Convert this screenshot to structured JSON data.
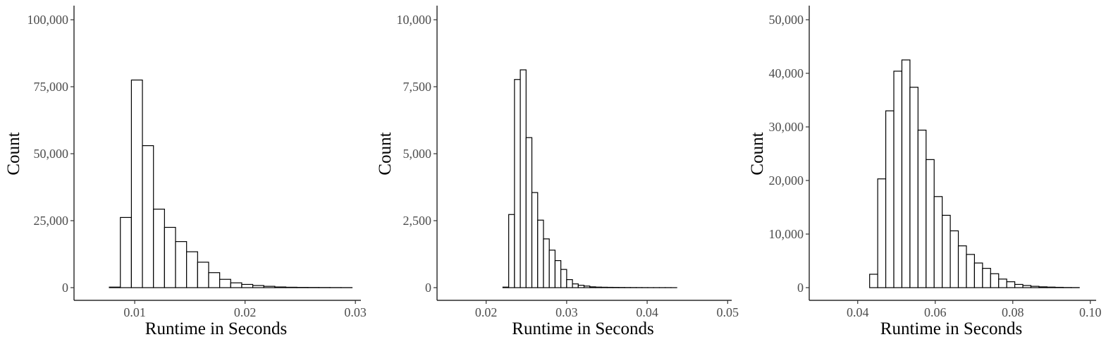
{
  "colors": {
    "bar_fill": "#ffffff",
    "bar_stroke": "#000000",
    "tick_text": "#4d4d4d"
  },
  "chart_data": [
    {
      "type": "bar",
      "title": "",
      "xlabel": "Runtime in Seconds",
      "ylabel": "Count",
      "xlim": [
        0.0045,
        0.0305
      ],
      "ylim": [
        0,
        100000
      ],
      "grid": false,
      "xticks": [
        0.01,
        0.02,
        0.03
      ],
      "xtick_labels": [
        "0.01",
        "0.02",
        "0.03"
      ],
      "yticks": [
        0,
        25000,
        50000,
        75000,
        100000
      ],
      "ytick_labels": [
        "0",
        "25,000",
        "50,000",
        "75,000",
        "100,000"
      ],
      "bin_width": 0.001,
      "bin_start": 0.0057,
      "values": [
        0,
        0,
        200,
        26200,
        77500,
        53000,
        29300,
        22500,
        17200,
        13400,
        9500,
        5600,
        3100,
        1800,
        1200,
        800,
        500,
        250,
        150,
        100,
        80,
        60,
        40,
        30
      ]
    },
    {
      "type": "bar",
      "title": "",
      "xlabel": "Runtime in Seconds",
      "ylabel": "Count",
      "xlim": [
        0.0139,
        0.0505
      ],
      "ylim": [
        0,
        10000
      ],
      "grid": false,
      "xticks": [
        0.02,
        0.03,
        0.04,
        0.05
      ],
      "xtick_labels": [
        "0.02",
        "0.03",
        "0.04",
        "0.05"
      ],
      "yticks": [
        0,
        2500,
        5000,
        7500,
        10000
      ],
      "ytick_labels": [
        "0",
        "2,500",
        "5,000",
        "7,500",
        "10,000"
      ],
      "bin_width": 0.00072,
      "bin_start": 0.0156,
      "values": [
        0,
        0,
        0,
        0,
        0,
        0,
        0,
        0,
        0,
        20,
        2730,
        7770,
        8130,
        5600,
        3550,
        2520,
        1820,
        1400,
        1010,
        680,
        300,
        140,
        90,
        60,
        30,
        20,
        15,
        12,
        10,
        8,
        6,
        5,
        4,
        3,
        2,
        2,
        2,
        2,
        1
      ]
    },
    {
      "type": "bar",
      "title": "",
      "xlabel": "Runtime in Seconds",
      "ylabel": "Count",
      "xlim": [
        0.0275,
        0.1015
      ],
      "ylim": [
        0,
        50000
      ],
      "grid": false,
      "xticks": [
        0.04,
        0.06,
        0.08,
        0.1
      ],
      "xtick_labels": [
        "0.04",
        "0.06",
        "0.08",
        "0.10"
      ],
      "yticks": [
        0,
        10000,
        20000,
        30000,
        40000,
        50000
      ],
      "ytick_labels": [
        "0",
        "10,000",
        "20,000",
        "30,000",
        "40,000",
        "50,000"
      ],
      "bin_width": 0.00208,
      "bin_start": 0.0306,
      "values": [
        0,
        0,
        0,
        0,
        0,
        0,
        2500,
        20300,
        33000,
        40400,
        42500,
        37400,
        29400,
        23900,
        17000,
        13500,
        10600,
        7800,
        6200,
        4600,
        3600,
        2600,
        1600,
        1100,
        600,
        400,
        250,
        150,
        100,
        60,
        30,
        20
      ]
    }
  ]
}
